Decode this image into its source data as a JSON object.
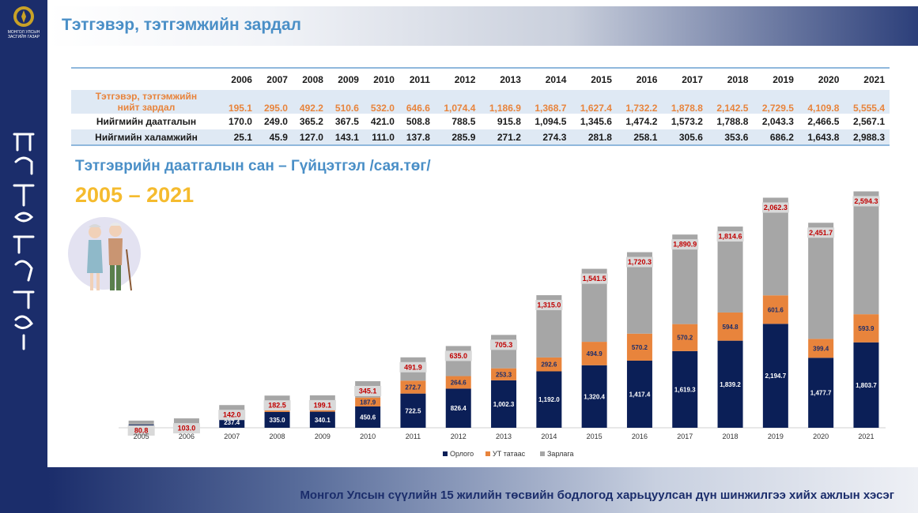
{
  "header": {
    "title": "Тэтгэвэр, тэтгэмжийн зардал"
  },
  "sidebar": {
    "org_line1": "МОНГОЛ УЛСЫН",
    "org_line2": "ЗАСГИЙН ГАЗАР"
  },
  "table": {
    "years": [
      "2006",
      "2007",
      "2008",
      "2009",
      "2010",
      "2011",
      "2012",
      "2013",
      "2014",
      "2015",
      "2016",
      "2017",
      "2018",
      "2019",
      "2020",
      "2021"
    ],
    "rows": [
      {
        "label_line1": "Тэтгэвэр, тэтгэмжийн",
        "label_line2": "нийт зардал",
        "values": [
          "195.1",
          "295.0",
          "492.2",
          "510.6",
          "532.0",
          "646.6",
          "1,074.4",
          "1,186.9",
          "1,368.7",
          "1,627.4",
          "1,732.2",
          "1,878.8",
          "2,142.5",
          "2,729.5",
          "4,109.8",
          "5,555.4"
        ]
      },
      {
        "label_line1": "Нийгмийн даатгалын",
        "label_line2": "",
        "values": [
          "170.0",
          "249.0",
          "365.2",
          "367.5",
          "421.0",
          "508.8",
          "788.5",
          "915.8",
          "1,094.5",
          "1,345.6",
          "1,474.2",
          "1,573.2",
          "1,788.8",
          "2,043.3",
          "2,466.5",
          "2,567.1"
        ]
      },
      {
        "label_line1": "Нийгмийн халамжийн",
        "label_line2": "",
        "values": [
          "25.1",
          "45.9",
          "127.0",
          "143.1",
          "111.0",
          "137.8",
          "285.9",
          "271.2",
          "274.3",
          "281.8",
          "258.1",
          "305.6",
          "353.6",
          "686.2",
          "1,643.8",
          "2,988.3"
        ]
      }
    ]
  },
  "section": {
    "subtitle": "Тэтгэврийн даатгалын сан – Гүйцэтгэл /сая.төг/",
    "years": "2005 – 2021"
  },
  "chart_data": {
    "type": "bar",
    "categories": [
      "2005",
      "2006",
      "2007",
      "2008",
      "2009",
      "2010",
      "2011",
      "2012",
      "2013",
      "2014",
      "2015",
      "2016",
      "2017",
      "2018",
      "2019",
      "2020",
      "2021"
    ],
    "series": [
      {
        "name": "Орлого",
        "color": "#0b1f57",
        "values": [
          70,
          95,
          237.4,
          335.0,
          340.1,
          450.6,
          722.5,
          826.4,
          1002.3,
          1192.0,
          1320.4,
          1417.4,
          1619.3,
          1839.2,
          2194.7,
          1477.7,
          1803.7
        ],
        "labels": [
          "",
          "",
          "237.4",
          "335.0",
          "340.1",
          "450.6",
          "722.5",
          "826.4",
          "1,002.3",
          "1,192.0",
          "1,320.4",
          "1,417.4",
          "1,619.3",
          "1,839.2",
          "2,194.7",
          "1,477.7",
          "1,803.7"
        ]
      },
      {
        "name": "УТ татаас",
        "color": "#e8843c",
        "values": [
          0,
          0,
          100,
          162.2,
          145.9,
          187.9,
          272.7,
          264.6,
          253.3,
          292.6,
          494.9,
          570.2,
          570.2,
          594.8,
          601.6,
          399.4,
          593.9
        ],
        "labels": [
          "",
          "",
          "",
          "162.2",
          "145.9",
          "187.9",
          "272.7",
          "264.6",
          "253.3",
          "292.6",
          "494.9",
          "570.2",
          "570.2",
          "594.8",
          "601.6",
          "399.4",
          "593.9"
        ]
      },
      {
        "name": "Зарлага",
        "color": "#a6a6a6",
        "values": [
          80.8,
          103.0,
          142.0,
          182.5,
          199.1,
          345.1,
          491.9,
          635.0,
          705.3,
          1315.0,
          1541.5,
          1720.3,
          1890.9,
          1814.6,
          2062.3,
          2451.7,
          2594.3
        ],
        "labels": [
          "80.8",
          "103.0",
          "142.0",
          "182.5",
          "199.1",
          "345.1",
          "491.9",
          "635.0",
          "705.3",
          "1,315.0",
          "1,541.5",
          "1,720.3",
          "1,890.9",
          "1,814.6",
          "2,062.3",
          "2,451.7",
          "2,594.3"
        ]
      }
    ],
    "ylim": [
      0,
      5000
    ],
    "legend_position": "bottom-center",
    "grid": false
  },
  "footer": {
    "text": "Монгол Улсын сүүлийн 15 жилийн төсвийн бодлогод харьцуулсан дүн шинжилгээ хийх ажлын хэсэг"
  }
}
